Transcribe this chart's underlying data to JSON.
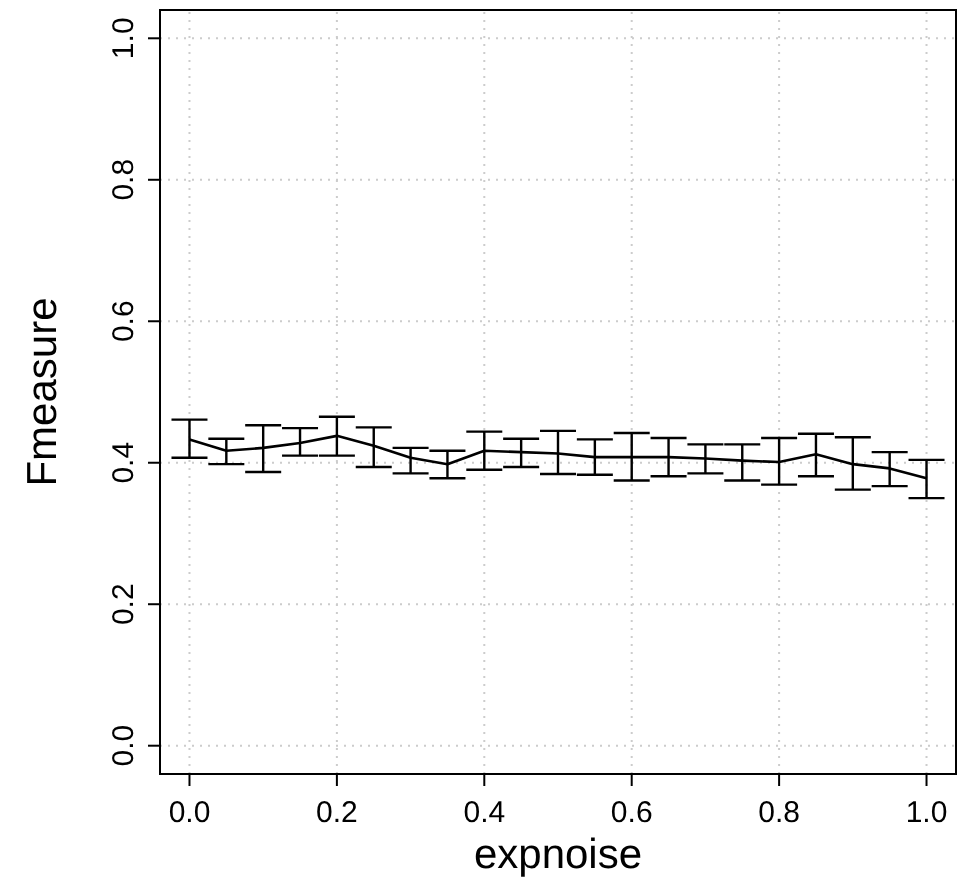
{
  "chart_data": {
    "type": "line",
    "xlabel": "expnoise",
    "ylabel": "Fmeasure",
    "x": [
      0,
      0.05,
      0.1,
      0.15,
      0.2,
      0.25,
      0.3,
      0.35,
      0.4,
      0.45,
      0.5,
      0.55,
      0.6,
      0.65,
      0.7,
      0.75,
      0.8,
      0.85,
      0.9,
      0.95,
      1.0
    ],
    "values": [
      0.433,
      0.417,
      0.421,
      0.428,
      0.438,
      0.424,
      0.407,
      0.398,
      0.417,
      0.415,
      0.413,
      0.408,
      0.408,
      0.408,
      0.406,
      0.403,
      0.401,
      0.412,
      0.398,
      0.392,
      0.378
    ],
    "errors": [
      [
        0.407,
        0.461
      ],
      [
        0.398,
        0.434
      ],
      [
        0.387,
        0.453
      ],
      [
        0.41,
        0.449
      ],
      [
        0.41,
        0.465
      ],
      [
        0.394,
        0.45
      ],
      [
        0.385,
        0.421
      ],
      [
        0.378,
        0.417
      ],
      [
        0.39,
        0.444
      ],
      [
        0.394,
        0.434
      ],
      [
        0.384,
        0.445
      ],
      [
        0.383,
        0.433
      ],
      [
        0.375,
        0.442
      ],
      [
        0.381,
        0.435
      ],
      [
        0.385,
        0.426
      ],
      [
        0.375,
        0.426
      ],
      [
        0.369,
        0.435
      ],
      [
        0.381,
        0.441
      ],
      [
        0.362,
        0.436
      ],
      [
        0.367,
        0.415
      ],
      [
        0.35,
        0.404
      ]
    ],
    "color": "#000000",
    "xlim": [
      -0.04,
      1.04
    ],
    "ylim": [
      -0.04,
      1.04
    ],
    "xticks": [
      {
        "value": 0,
        "label": "0.0"
      },
      0.2,
      0.4,
      0.6,
      0.8,
      {
        "value": 1,
        "label": "1.0"
      }
    ],
    "yticks": [
      {
        "value": 0,
        "label": "0.0"
      },
      0.2,
      0.4,
      0.6,
      0.8,
      {
        "value": 1,
        "label": "1.0"
      }
    ],
    "grid": true,
    "line_style": "solid"
  }
}
